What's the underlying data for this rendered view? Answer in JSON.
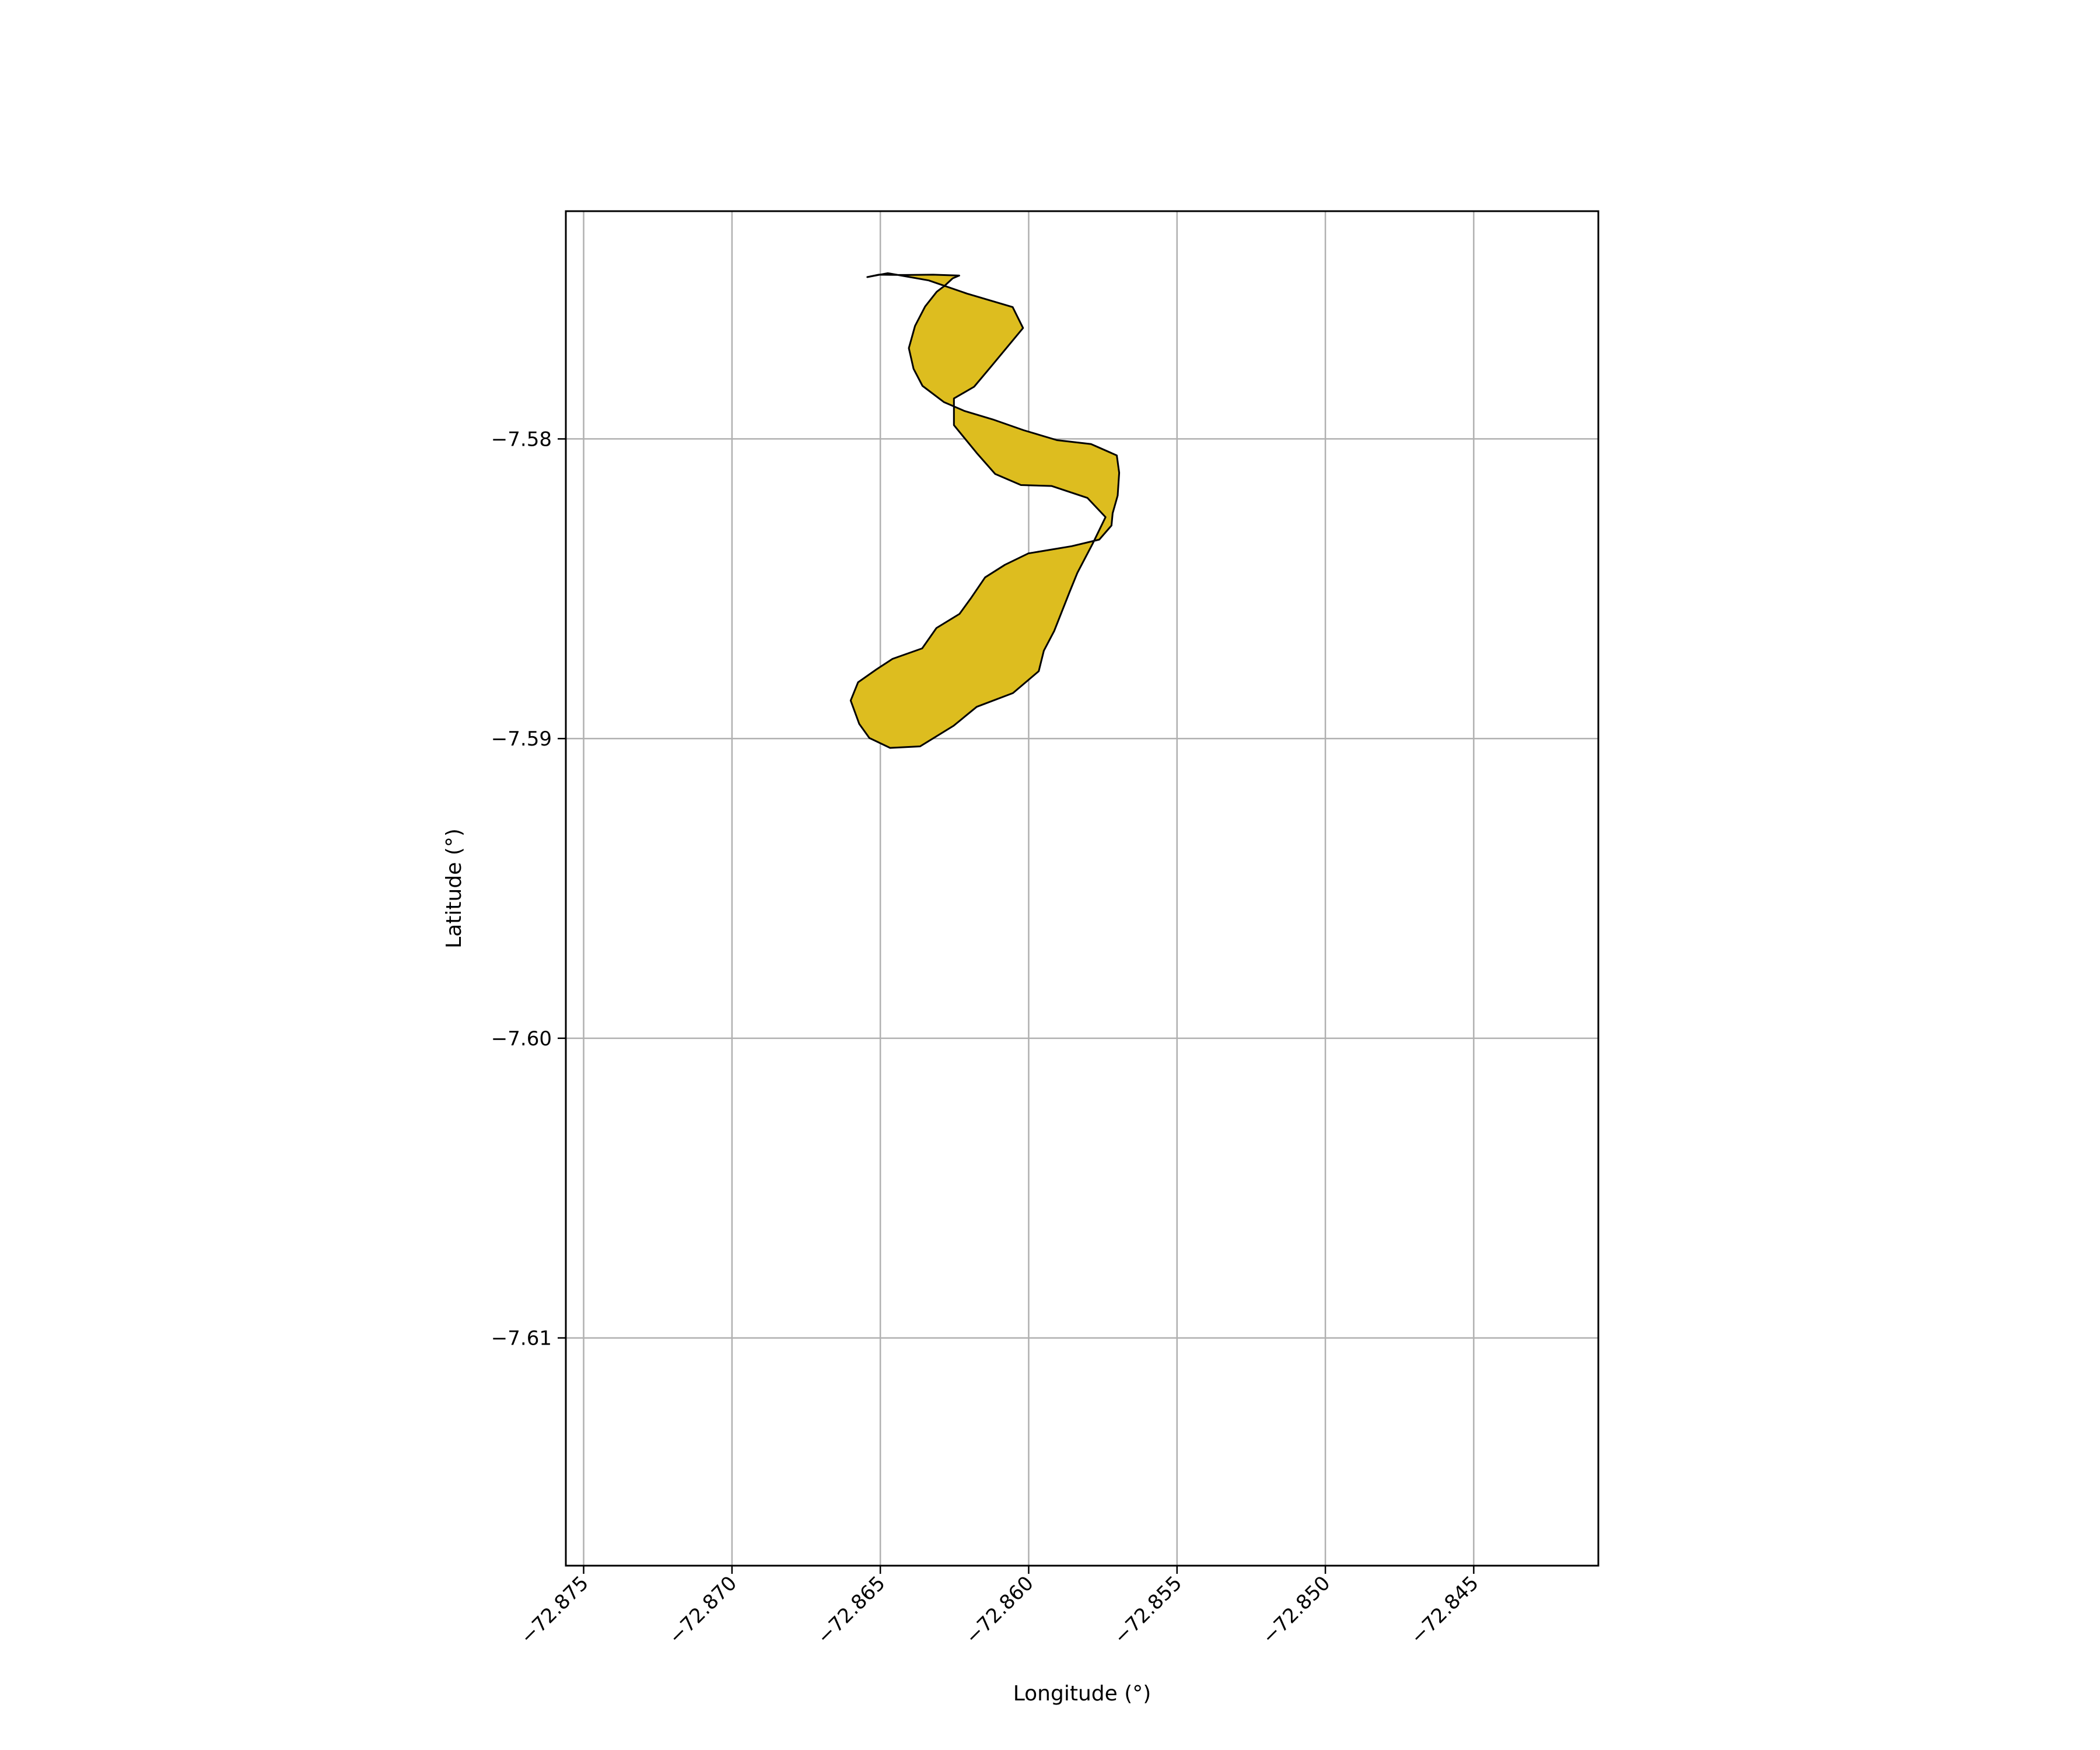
{
  "map": {
    "xlabel": "Longitude (°)",
    "ylabel": "Latitude (°)",
    "fill_color": "#DDBD1F",
    "edge_color": "#000000",
    "grid_color": "#b0b0b0",
    "grid": true,
    "xlim": [
      -72.8756,
      -72.8408
    ],
    "ylim": [
      -7.6176,
      -7.5724
    ],
    "xticks": [
      {
        "value": -72.875,
        "label": "−72.875"
      },
      {
        "value": -72.87,
        "label": "−72.870"
      },
      {
        "value": -72.865,
        "label": "−72.865"
      },
      {
        "value": -72.86,
        "label": "−72.860"
      },
      {
        "value": -72.855,
        "label": "−72.855"
      },
      {
        "value": -72.85,
        "label": "−72.850"
      },
      {
        "value": -72.845,
        "label": "−72.845"
      }
    ],
    "yticks": [
      {
        "value": -7.58,
        "label": "−7.58"
      },
      {
        "value": -7.59,
        "label": "−7.59"
      },
      {
        "value": -7.6,
        "label": "−7.60"
      },
      {
        "value": -7.61,
        "label": "−7.61"
      }
    ]
  },
  "chart_data": {
    "type": "map",
    "xlabel": "Longitude (°)",
    "ylabel": "Latitude (°)",
    "xlim": [
      -72.8756,
      -72.8408
    ],
    "ylim": [
      -7.6176,
      -7.5724
    ],
    "grid": true,
    "polygon": [
      [
        -72.86544,
        -7.5746
      ],
      [
        -72.86475,
        -7.57447
      ],
      [
        -72.86337,
        -7.57471
      ],
      [
        -72.86208,
        -7.57515
      ],
      [
        -72.86054,
        -7.5756
      ],
      [
        -72.86019,
        -7.5763
      ],
      [
        -72.86123,
        -7.57754
      ],
      [
        -72.86184,
        -7.57826
      ],
      [
        -72.86252,
        -7.57865
      ],
      [
        -72.86252,
        -7.57954
      ],
      [
        -72.86175,
        -7.58047
      ],
      [
        -72.86113,
        -7.58117
      ],
      [
        -72.86026,
        -7.58154
      ],
      [
        -72.85923,
        -7.58157
      ],
      [
        -72.85802,
        -7.58197
      ],
      [
        -72.85741,
        -7.58261
      ],
      [
        -72.85784,
        -7.58349
      ],
      [
        -72.85836,
        -7.58447
      ],
      [
        -72.85863,
        -7.58513
      ],
      [
        -72.85914,
        -7.58641
      ],
      [
        -72.85949,
        -7.58707
      ],
      [
        -72.85966,
        -7.58775
      ],
      [
        -72.86053,
        -7.58848
      ],
      [
        -72.86175,
        -7.58894
      ],
      [
        -72.86253,
        -7.58957
      ],
      [
        -72.86366,
        -7.59026
      ],
      [
        -72.86467,
        -7.59031
      ],
      [
        -72.86537,
        -7.58998
      ],
      [
        -72.86571,
        -7.58951
      ],
      [
        -72.866,
        -7.58873
      ],
      [
        -72.86575,
        -7.58812
      ],
      [
        -72.86513,
        -7.58769
      ],
      [
        -72.86459,
        -7.58734
      ],
      [
        -72.86359,
        -7.58699
      ],
      [
        -72.86311,
        -7.58631
      ],
      [
        -72.86233,
        -7.58584
      ],
      [
        -72.86193,
        -7.58529
      ],
      [
        -72.86147,
        -7.58462
      ],
      [
        -72.8608,
        -7.5842
      ],
      [
        -72.86001,
        -7.58382
      ],
      [
        -72.85855,
        -7.58358
      ],
      [
        -72.85762,
        -7.58336
      ],
      [
        -72.85721,
        -7.58289
      ],
      [
        -72.85717,
        -7.58248
      ],
      [
        -72.857,
        -7.58189
      ],
      [
        -72.85695,
        -7.58113
      ],
      [
        -72.85703,
        -7.58055
      ],
      [
        -72.8579,
        -7.58017
      ],
      [
        -72.85905,
        -7.58004
      ],
      [
        -72.86017,
        -7.57971
      ],
      [
        -72.86121,
        -7.57935
      ],
      [
        -72.86216,
        -7.57907
      ],
      [
        -72.86286,
        -7.57877
      ],
      [
        -72.86358,
        -7.57823
      ],
      [
        -72.86388,
        -7.57766
      ],
      [
        -72.86404,
        -7.57697
      ],
      [
        -72.86383,
        -7.57623
      ],
      [
        -72.86349,
        -7.57558
      ],
      [
        -72.8631,
        -7.57509
      ],
      [
        -72.86281,
        -7.57487
      ],
      [
        -72.86256,
        -7.57464
      ],
      [
        -72.86234,
        -7.57455
      ],
      [
        -72.86322,
        -7.57452
      ],
      [
        -72.86415,
        -7.57453
      ],
      [
        -72.86505,
        -7.57452
      ],
      [
        -72.86544,
        -7.5746
      ]
    ]
  }
}
